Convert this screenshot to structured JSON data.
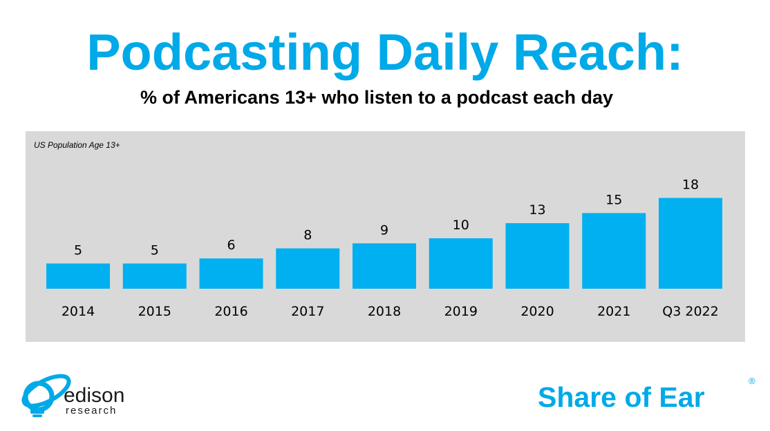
{
  "header": {
    "title": "Podcasting Daily Reach:",
    "subtitle": "% of Americans 13+ who listen to a podcast each day"
  },
  "chart_data": {
    "type": "bar",
    "note": "US Population Age 13+",
    "categories": [
      "2014",
      "2015",
      "2016",
      "2017",
      "2018",
      "2019",
      "2020",
      "2021",
      "Q3 2022"
    ],
    "values": [
      5,
      5,
      6,
      8,
      9,
      10,
      13,
      15,
      18
    ],
    "data_labels": [
      "5",
      "5",
      "6",
      "8",
      "9",
      "10",
      "13",
      "15",
      "18"
    ],
    "ylim": [
      0,
      20
    ],
    "grid": false,
    "legend": "none",
    "bar_color": "#00b0f0",
    "panel_color": "#d9d9d9"
  },
  "branding": {
    "logo_name": "edison",
    "logo_sub": "research",
    "product": "Share of Ear",
    "registered_mark": "®",
    "accent_color": "#00a9e8"
  }
}
